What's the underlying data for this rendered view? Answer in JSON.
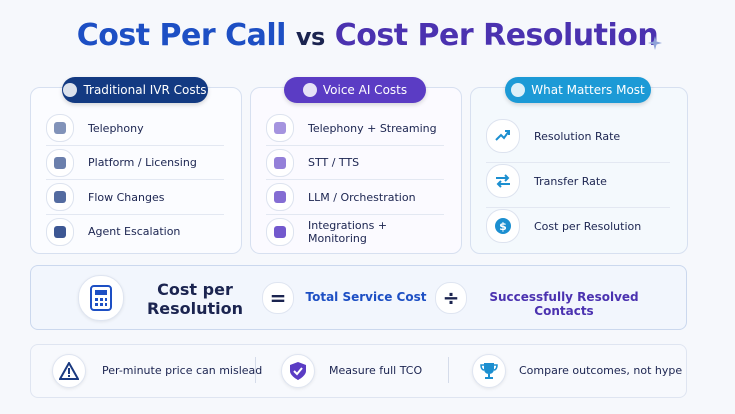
{
  "title": {
    "part1": "Cost Per Call",
    "part2": "vs",
    "part3": "Cost Per Resolution"
  },
  "panels": [
    {
      "title": "Traditional IVR Costs",
      "items": [
        "Telephony",
        "Platform / Licensing",
        "Flow Changes",
        "Agent Escalation"
      ]
    },
    {
      "title": "Voice AI Costs",
      "items": [
        "Telephony + Streaming",
        "STT / TTS",
        "LLM / Orchestration",
        "Integrations + Monitoring"
      ]
    },
    {
      "title": "What Matters Most",
      "items": [
        "Resolution Rate",
        "Transfer Rate",
        "Cost per Resolution"
      ]
    }
  ],
  "formula": {
    "label": "Cost per Resolution",
    "equals": "=",
    "numerator": "Total Service Cost",
    "divide": "÷",
    "denominator": "Successfully Resolved Contacts"
  },
  "footer": [
    "Per-minute price can mislead",
    "Measure full TCO",
    "Compare outcomes, not hype"
  ]
}
